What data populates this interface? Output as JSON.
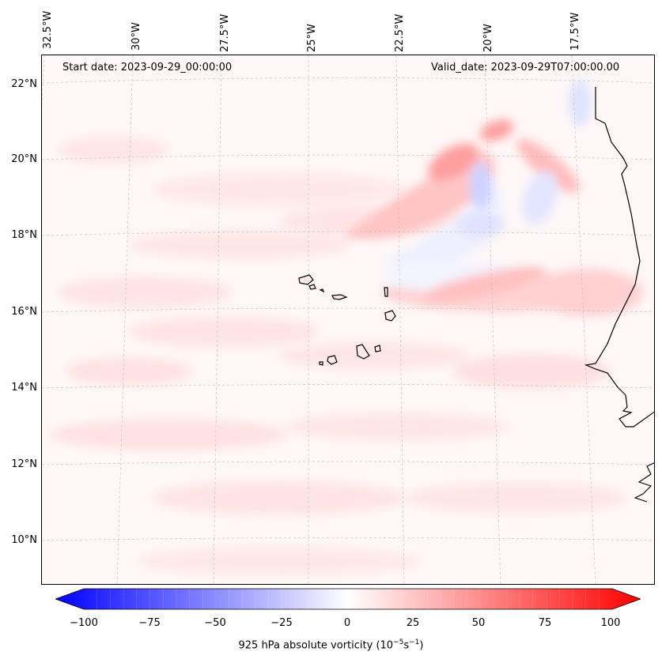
{
  "map": {
    "start_date": "Start date: 2023-09-29_00:00:00",
    "valid_date": "Valid_date: 2023-09-29T07:00:00.00",
    "lat_labels": [
      "22°N",
      "20°N",
      "18°N",
      "16°N",
      "14°N",
      "12°N",
      "10°N"
    ],
    "lon_labels": [
      "32.5°W",
      "30°W",
      "27.5°W",
      "25°W",
      "22.5°W",
      "20°W",
      "17.5°W"
    ],
    "field": "925 hPa absolute vorticity",
    "islands": "Cabo Verde",
    "coastline": "West Africa"
  },
  "colorbar": {
    "ticks": [
      "−100",
      "−75",
      "−50",
      "−25",
      "0",
      "25",
      "50",
      "75",
      "100"
    ],
    "tick_values": [
      -100,
      -75,
      -50,
      -25,
      0,
      25,
      50,
      75,
      100
    ],
    "label_main": "925 hPa absolute vorticity (10",
    "label_exp1": "−5",
    "label_mid": "s",
    "label_exp2": "−1",
    "label_end": ")",
    "min_color": "#0000ff",
    "mid_color": "#ffffff",
    "max_color": "#ff0000"
  }
}
